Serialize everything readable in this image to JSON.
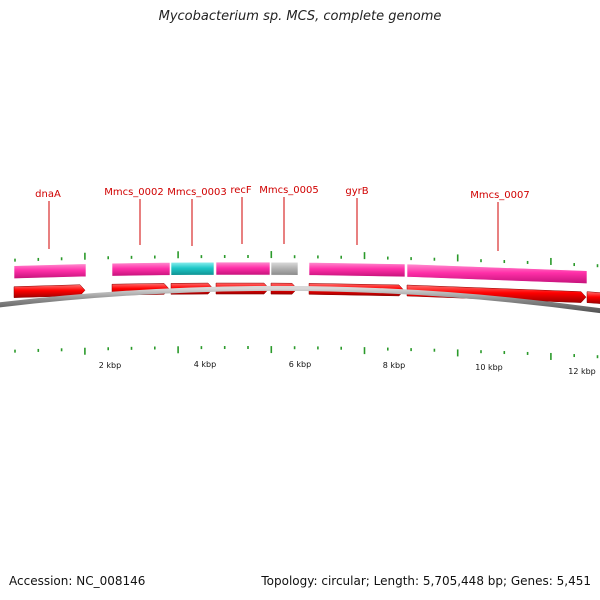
{
  "title": "Mycobacterium sp. MCS, complete genome",
  "accession": "Accession: NC_008146",
  "summary": "Topology: circular; Length: 5,705,448 bp; Genes: 5,451",
  "colors": {
    "gene_label": "#d00000",
    "cds_arrow": "#ff0000",
    "cds_arrow_dark": "#b00000",
    "gene_magenta": "#ff2fa8",
    "gene_cyan": "#1ec8c8",
    "gene_gray": "#b4b4b4",
    "tick": "#2a9a2a",
    "backbone": "#888888"
  },
  "gene_labels": [
    {
      "name": "dnaA"
    },
    {
      "name": "Mmcs_0002"
    },
    {
      "name": "Mmcs_0003"
    },
    {
      "name": "recF"
    },
    {
      "name": "Mmcs_0005"
    },
    {
      "name": "gyrB"
    },
    {
      "name": "Mmcs_0007"
    }
  ],
  "scale_labels": [
    "2 kbp",
    "4 kbp",
    "6 kbp",
    "8 kbp",
    "10 kbp",
    "12 kbp"
  ],
  "gene_track": [
    {
      "color": "magenta"
    },
    {
      "color": "magenta"
    },
    {
      "color": "cyan"
    },
    {
      "color": "magenta"
    },
    {
      "color": "gray"
    },
    {
      "color": "magenta"
    },
    {
      "color": "magenta"
    }
  ],
  "cds_track_count": 8
}
